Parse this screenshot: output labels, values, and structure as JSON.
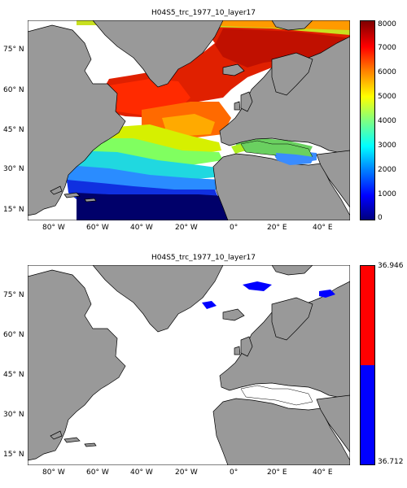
{
  "maps": [
    {
      "title": "H04S5_trc_1977_10_layer17",
      "lon_ticks": [
        "80° W",
        "60° W",
        "40° W",
        "20° W",
        "0°",
        "20° E",
        "40° E"
      ],
      "lat_ticks": [
        "75° N",
        "60° N",
        "45° N",
        "30° N",
        "15° N"
      ],
      "colorbar": {
        "type": "continuous",
        "range": [
          0,
          8000
        ],
        "tick_labels": [
          "8000",
          "7000",
          "6000",
          "5000",
          "4000",
          "3000",
          "2000",
          "1000",
          "0"
        ],
        "colormap": [
          "#00007f",
          "#0000ff",
          "#0080ff",
          "#00ffff",
          "#80ff80",
          "#ffff00",
          "#ff8000",
          "#ff0000",
          "#7f0000"
        ]
      },
      "land_color": "#999999",
      "ocean_color": "#ffffff"
    },
    {
      "title": "H04S5_trc_1977_10_layer17",
      "lon_ticks": [
        "80° W",
        "60° W",
        "40° W",
        "20° W",
        "0°",
        "20° E",
        "40° E"
      ],
      "lat_ticks": [
        "75° N",
        "60° N",
        "45° N",
        "30° N",
        "15° N"
      ],
      "colorbar": {
        "type": "two-class",
        "max_label": "36.946",
        "min_label": "36.712",
        "colors": [
          "#ff0000",
          "#0000ff"
        ]
      },
      "land_color": "#999999",
      "ocean_color": "#ffffff"
    }
  ]
}
